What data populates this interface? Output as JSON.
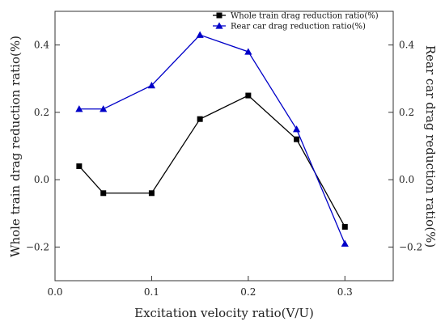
{
  "chart_data": {
    "type": "line",
    "xlabel": "Excitation velocity ratio(V/U)",
    "ylabel_left": "Whole train drag reduction ratio(%)",
    "ylabel_right": "Rear car drag reduction ratio(%)",
    "xlim": [
      0.0,
      0.35
    ],
    "ylim": [
      -0.3,
      0.5
    ],
    "x_ticks": [
      0.0,
      0.1,
      0.2,
      0.3
    ],
    "x_tick_labels": [
      "0.0",
      "0.1",
      "0.2",
      "0.3"
    ],
    "y_ticks": [
      -0.2,
      0.0,
      0.2,
      0.4
    ],
    "y_tick_labels": [
      "−0.2",
      "0.0",
      "0.2",
      "0.4"
    ],
    "grid": false,
    "legend_position": "top-right",
    "series": [
      {
        "name": "Whole train drag reduction ratio(%)",
        "color": "#000000",
        "marker": "square",
        "x": [
          0.025,
          0.05,
          0.1,
          0.15,
          0.2,
          0.25,
          0.3
        ],
        "y": [
          0.04,
          -0.04,
          -0.04,
          0.18,
          0.25,
          0.12,
          -0.14
        ]
      },
      {
        "name": "Rear car drag reduction ratio(%)",
        "color": "#0000c8",
        "marker": "triangle",
        "x": [
          0.025,
          0.05,
          0.1,
          0.15,
          0.2,
          0.25,
          0.3
        ],
        "y": [
          0.21,
          0.21,
          0.28,
          0.43,
          0.38,
          0.15,
          -0.19
        ]
      }
    ]
  }
}
